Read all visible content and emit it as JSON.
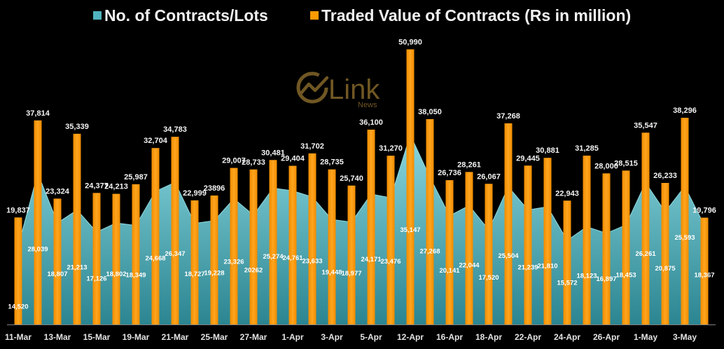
{
  "colors": {
    "background": "#000000"
  },
  "watermark": {
    "text": "Link",
    "subtext": "News"
  },
  "chart_data": {
    "type": "bar",
    "legend": "top",
    "grid": false,
    "ylim": [
      0,
      60000
    ],
    "categories": [
      "11-Mar",
      "",
      "13-Mar",
      "",
      "15-Mar",
      "",
      "19-Mar",
      "",
      "21-Mar",
      "",
      "25-Mar",
      "",
      "27-Mar",
      "",
      "1-Apr",
      "",
      "3-Apr",
      "",
      "5-Apr",
      "",
      "12-Apr",
      "",
      "16-Apr",
      "",
      "18-Apr",
      "",
      "22-Apr",
      "",
      "24-Apr",
      "",
      "26-Apr",
      "",
      "1-May",
      "",
      "3-May",
      ""
    ],
    "series": [
      {
        "name": "No. of Contracts/Lots",
        "type": "area",
        "color": "#4fb3be",
        "values": [
          14520,
          28039,
          18807,
          21213,
          17126,
          18802,
          18349,
          24668,
          26347,
          18727,
          19228,
          23326,
          20262,
          25274,
          24761,
          23633,
          19448,
          18977,
          24171,
          23476,
          35147,
          27268,
          20141,
          22044,
          17520,
          25504,
          21239,
          21810,
          15572,
          18123,
          16897,
          18453,
          26261,
          20875,
          25593,
          18367
        ],
        "labels": [
          "14,520",
          "28,039",
          "18,807",
          "21,213",
          "17,126",
          "18,802",
          "18,349",
          "24,668",
          "26,347",
          "18,727",
          "19,228",
          "23,326",
          "20262",
          "25,274",
          "24,761",
          "23,633",
          "19,448",
          "18,977",
          "24,171",
          "23,476",
          "35,147",
          "27,268",
          "20,141",
          "22,044",
          "17,520",
          "25,504",
          "21,239",
          "21,810",
          "15,572",
          "18,123",
          "16,897",
          "18,453",
          "26,261",
          "20,875",
          "25,593",
          "18,367"
        ]
      },
      {
        "name": "Traded Value of Contracts (Rs in million)",
        "type": "bar",
        "color": "#ff9a00",
        "values": [
          19837,
          37814,
          23324,
          35339,
          24377,
          24213,
          25987,
          32704,
          34783,
          22999,
          23896,
          29007,
          28733,
          30481,
          29404,
          31702,
          28735,
          25740,
          36100,
          31270,
          50990,
          38050,
          26736,
          28261,
          26067,
          37268,
          29445,
          30881,
          22943,
          31285,
          28000,
          28515,
          35547,
          26233,
          38296,
          19796
        ],
        "labels": [
          "19,837",
          "37,814",
          "23,324",
          "35,339",
          "24,377",
          "24,213",
          "25,987",
          "32,704",
          "34,783",
          "22,999",
          "23896",
          "29,007",
          "28,733",
          "30,481",
          "29,404",
          "31,702",
          "28,735",
          "25,740",
          "36,100",
          "31,270",
          "50,990",
          "38,050",
          "26,736",
          "28,261",
          "26,067",
          "37,268",
          "29,445",
          "30,881",
          "22,943",
          "31,285",
          "28,000",
          "28,515",
          "35,547",
          "26,233",
          "38,296",
          "19,796"
        ]
      }
    ]
  }
}
